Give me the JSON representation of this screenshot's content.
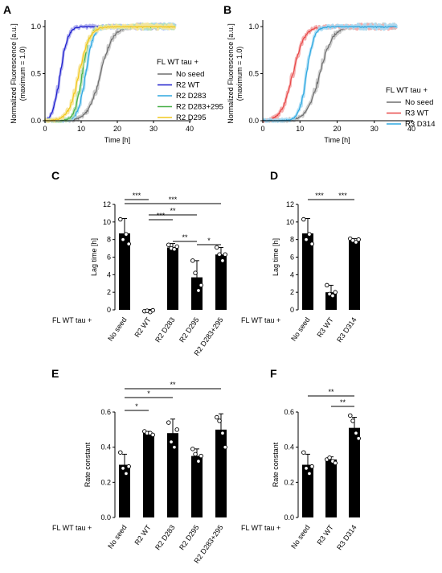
{
  "panel_letters": [
    "A",
    "B",
    "C",
    "D",
    "E",
    "F"
  ],
  "prefix_label": "FL WT tau +",
  "chart_data": [
    {
      "panel": "A",
      "type": "line",
      "xlabel": "Time [h]",
      "ylabel_lines": [
        "Normalized Fluorescence [a.u.]",
        "(maximum = 1.0)"
      ],
      "xlim": [
        0,
        40
      ],
      "ylim": [
        0,
        1.0
      ],
      "xticks": [
        0,
        10,
        20,
        30,
        40
      ],
      "yticks": [
        0.0,
        0.5,
        1.0
      ],
      "ytick_labels": [
        "0.0",
        "0.5",
        "1.0"
      ],
      "legend_title": "FL WT tau +",
      "legend_position": "center-right",
      "series": [
        {
          "name": "No seed",
          "color": "#6e6e6e",
          "shade": "#c8c8c8",
          "lag": 8.7,
          "k": 0.3
        },
        {
          "name": "R2 WT",
          "color": "#1c1ccc",
          "shade": "#a8a8ee",
          "lag": 0.0,
          "k": 0.48
        },
        {
          "name": "R2 D283",
          "color": "#2ea8e0",
          "shade": "#a8dcf4",
          "lag": 7.1,
          "k": 0.48
        },
        {
          "name": "R2 D283+295",
          "color": "#48b048",
          "shade": "#b6e0b0",
          "lag": 6.3,
          "k": 0.5
        },
        {
          "name": "R2 D295",
          "color": "#f0c81e",
          "shade": "#f8e69a",
          "lag": 3.7,
          "k": 0.35
        }
      ]
    },
    {
      "panel": "B",
      "type": "line",
      "xlabel": "Time [h]",
      "ylabel_lines": [
        "Normalized Fluorescence [a.u.]",
        "(maximum = 1.0)"
      ],
      "xlim": [
        0,
        40
      ],
      "ylim": [
        0,
        1.0
      ],
      "xticks": [
        0,
        10,
        20,
        30,
        40
      ],
      "yticks": [
        0.0,
        0.5,
        1.0
      ],
      "ytick_labels": [
        "0.0",
        "0.5",
        "1.0"
      ],
      "legend_title": "FL WT tau +",
      "legend_position": "bottom-right",
      "series": [
        {
          "name": "No seed",
          "color": "#6e6e6e",
          "shade": "#c8c8c8",
          "lag": 8.7,
          "k": 0.3
        },
        {
          "name": "R3 WT",
          "color": "#e84848",
          "shade": "#f4a8a8",
          "lag": 2.0,
          "k": 0.33
        },
        {
          "name": "R3 D314",
          "color": "#2ea8e0",
          "shade": "#a8dcf4",
          "lag": 7.9,
          "k": 0.51
        }
      ]
    },
    {
      "panel": "C",
      "type": "bar",
      "ylabel": "Lag time [h]",
      "ylim": [
        0,
        12
      ],
      "yticks": [
        0,
        2,
        4,
        6,
        8,
        10,
        12
      ],
      "categories": [
        "No seed",
        "R2 WT",
        "R2 D283",
        "R2 D295",
        "R2 D283+295"
      ],
      "values": [
        8.7,
        -0.1,
        7.1,
        3.7,
        6.3
      ],
      "errors": [
        1.7,
        0.15,
        0.45,
        1.9,
        0.8
      ],
      "points": [
        [
          10.3,
          8.0,
          8.6,
          7.5
        ],
        [
          -0.15,
          -0.1,
          -0.25,
          -0.05
        ],
        [
          7.4,
          7.0,
          6.9,
          7.2
        ],
        [
          5.6,
          4.2,
          2.2,
          2.8
        ],
        [
          7.1,
          6.3,
          5.6,
          6.3
        ]
      ],
      "significance": [
        {
          "from": 0,
          "to": 1,
          "label": "***"
        },
        {
          "from": 0,
          "to": 4,
          "label": "***"
        },
        {
          "from": 1,
          "to": 3,
          "label": "**"
        },
        {
          "from": 1,
          "to": 2,
          "label": "***"
        },
        {
          "from": 2,
          "to": 3,
          "label": "**"
        },
        {
          "from": 3,
          "to": 4,
          "label": "*"
        }
      ]
    },
    {
      "panel": "D",
      "type": "bar",
      "ylabel": "Lag time [h]",
      "ylim": [
        0,
        12
      ],
      "yticks": [
        0,
        2,
        4,
        6,
        8,
        10,
        12
      ],
      "categories": [
        "No seed",
        "R3 WT",
        "R3 D314"
      ],
      "values": [
        8.7,
        2.0,
        7.9
      ],
      "errors": [
        1.7,
        0.8,
        0.2
      ],
      "points": [
        [
          10.3,
          8.0,
          8.6,
          7.5
        ],
        [
          2.8,
          1.8,
          1.6,
          2.0
        ],
        [
          8.1,
          7.9,
          7.7,
          8.0
        ]
      ],
      "significance": [
        {
          "from": 0,
          "to": 1,
          "label": "***"
        },
        {
          "from": 1,
          "to": 2,
          "label": "***"
        }
      ]
    },
    {
      "panel": "E",
      "type": "bar",
      "ylabel": "Rate constant",
      "ylim": [
        0,
        0.6
      ],
      "yticks": [
        0.0,
        0.2,
        0.4,
        0.6
      ],
      "ytick_labels": [
        "0.0",
        "0.2",
        "0.4",
        "0.6"
      ],
      "categories": [
        "No seed",
        "R2 WT",
        "R2 D283",
        "R2 D295",
        "R2 D283+295"
      ],
      "values": [
        0.3,
        0.48,
        0.48,
        0.35,
        0.5
      ],
      "errors": [
        0.06,
        0.01,
        0.08,
        0.04,
        0.09
      ],
      "points": [
        [
          0.37,
          0.28,
          0.25,
          0.29
        ],
        [
          0.49,
          0.48,
          0.48,
          0.47
        ],
        [
          0.54,
          0.43,
          0.4,
          0.5
        ],
        [
          0.39,
          0.36,
          0.32,
          0.35
        ],
        [
          0.57,
          0.55,
          0.48,
          0.4
        ]
      ],
      "significance": [
        {
          "from": 0,
          "to": 1,
          "label": "*"
        },
        {
          "from": 0,
          "to": 2,
          "label": "*"
        },
        {
          "from": 0,
          "to": 4,
          "label": "**"
        }
      ]
    },
    {
      "panel": "F",
      "type": "bar",
      "ylabel": "Rate constant",
      "ylim": [
        0,
        0.6
      ],
      "yticks": [
        0.0,
        0.2,
        0.4,
        0.6
      ],
      "ytick_labels": [
        "0.0",
        "0.2",
        "0.4",
        "0.6"
      ],
      "categories": [
        "No seed",
        "R3 WT",
        "R3 D314"
      ],
      "values": [
        0.3,
        0.33,
        0.51
      ],
      "errors": [
        0.06,
        0.015,
        0.06
      ],
      "points": [
        [
          0.37,
          0.28,
          0.25,
          0.29
        ],
        [
          0.33,
          0.34,
          0.32,
          0.31
        ],
        [
          0.58,
          0.55,
          0.48,
          0.45
        ]
      ],
      "significance": [
        {
          "from": 0,
          "to": 2,
          "label": "**"
        },
        {
          "from": 1,
          "to": 2,
          "label": "**"
        }
      ]
    }
  ]
}
